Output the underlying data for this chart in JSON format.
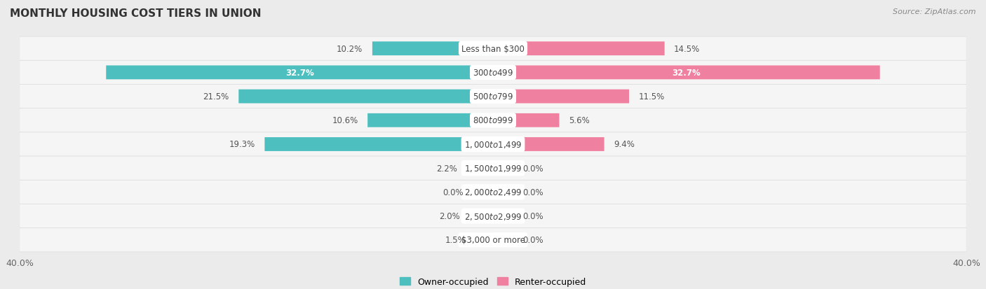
{
  "title": "MONTHLY HOUSING COST TIERS IN UNION",
  "source": "Source: ZipAtlas.com",
  "categories": [
    "Less than $300",
    "$300 to $499",
    "$500 to $799",
    "$800 to $999",
    "$1,000 to $1,499",
    "$1,500 to $1,999",
    "$2,000 to $2,499",
    "$2,500 to $2,999",
    "$3,000 or more"
  ],
  "owner_values": [
    10.2,
    32.7,
    21.5,
    10.6,
    19.3,
    2.2,
    0.0,
    2.0,
    1.5
  ],
  "renter_values": [
    14.5,
    32.7,
    11.5,
    5.6,
    9.4,
    0.0,
    0.0,
    0.0,
    0.0
  ],
  "owner_color": "#4DBFBF",
  "renter_color": "#F080A0",
  "owner_label": "Owner-occupied",
  "renter_label": "Renter-occupied",
  "xlim": [
    -40,
    40
  ],
  "background_color": "#ebebeb",
  "row_bg_color": "#f5f5f5",
  "title_fontsize": 11,
  "source_fontsize": 8,
  "bar_height": 0.58,
  "label_fontsize": 8.5,
  "value_label_color_inside": "#ffffff",
  "value_label_color_outside": "#555555"
}
